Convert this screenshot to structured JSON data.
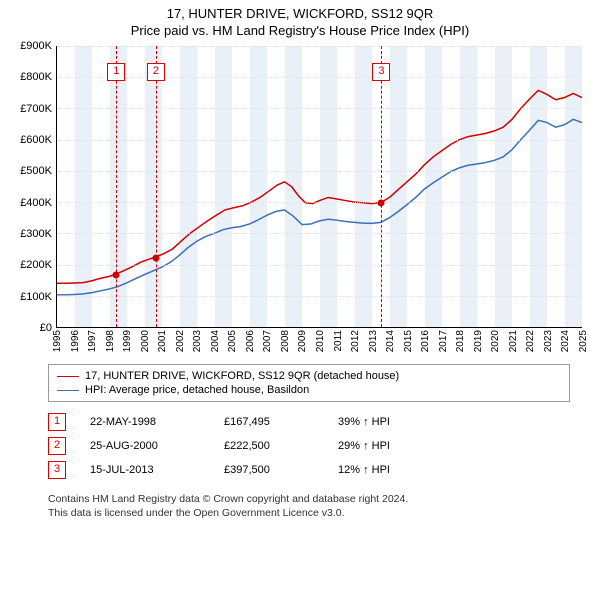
{
  "title": {
    "line1": "17, HUNTER DRIVE, WICKFORD, SS12 9QR",
    "line2": "Price paid vs. HM Land Registry's House Price Index (HPI)"
  },
  "chart": {
    "type": "line",
    "x_start_year": 1995,
    "x_end_year": 2025,
    "y_min": 0,
    "y_max": 900000,
    "y_tick_step": 100000,
    "y_tick_labels": [
      "£0",
      "£100K",
      "£200K",
      "£300K",
      "£400K",
      "£500K",
      "£600K",
      "£700K",
      "£800K",
      "£900K"
    ],
    "background_color": "#ffffff",
    "grid_color": "#e0e0e0",
    "band_color": "#eaf0f8",
    "axis_color": "#000000",
    "title_fontsize": 13,
    "axis_fontsize": 11,
    "series": [
      {
        "key": "price_paid",
        "label": "17, HUNTER DRIVE, WICKFORD, SS12 9QR (detached house)",
        "color": "#d10000",
        "line_width": 1.5,
        "points": [
          [
            1995.0,
            140000
          ],
          [
            1995.5,
            140000
          ],
          [
            1996.0,
            141000
          ],
          [
            1996.5,
            142000
          ],
          [
            1997.0,
            148000
          ],
          [
            1997.5,
            156000
          ],
          [
            1998.0,
            162000
          ],
          [
            1998.39,
            170000
          ],
          [
            1998.8,
            180000
          ],
          [
            1999.3,
            193000
          ],
          [
            1999.8,
            208000
          ],
          [
            2000.3,
            218000
          ],
          [
            2000.65,
            225000
          ],
          [
            2001.1,
            235000
          ],
          [
            2001.6,
            250000
          ],
          [
            2002.1,
            275000
          ],
          [
            2002.6,
            300000
          ],
          [
            2003.1,
            320000
          ],
          [
            2003.6,
            340000
          ],
          [
            2004.1,
            358000
          ],
          [
            2004.6,
            375000
          ],
          [
            2005.1,
            382000
          ],
          [
            2005.6,
            388000
          ],
          [
            2006.1,
            400000
          ],
          [
            2006.6,
            415000
          ],
          [
            2007.1,
            435000
          ],
          [
            2007.6,
            455000
          ],
          [
            2008.0,
            465000
          ],
          [
            2008.4,
            450000
          ],
          [
            2008.8,
            420000
          ],
          [
            2009.2,
            398000
          ],
          [
            2009.6,
            395000
          ],
          [
            2010.0,
            405000
          ],
          [
            2010.5,
            415000
          ],
          [
            2011.0,
            410000
          ],
          [
            2011.5,
            405000
          ],
          [
            2012.0,
            400000
          ],
          [
            2012.5,
            398000
          ],
          [
            2013.0,
            395000
          ],
          [
            2013.54,
            400000
          ],
          [
            2014.0,
            415000
          ],
          [
            2014.5,
            440000
          ],
          [
            2015.0,
            465000
          ],
          [
            2015.5,
            490000
          ],
          [
            2016.0,
            520000
          ],
          [
            2016.5,
            545000
          ],
          [
            2017.0,
            565000
          ],
          [
            2017.5,
            585000
          ],
          [
            2018.0,
            600000
          ],
          [
            2018.5,
            610000
          ],
          [
            2019.0,
            615000
          ],
          [
            2019.5,
            620000
          ],
          [
            2020.0,
            628000
          ],
          [
            2020.5,
            640000
          ],
          [
            2021.0,
            665000
          ],
          [
            2021.5,
            700000
          ],
          [
            2022.0,
            730000
          ],
          [
            2022.5,
            758000
          ],
          [
            2023.0,
            745000
          ],
          [
            2023.5,
            728000
          ],
          [
            2024.0,
            735000
          ],
          [
            2024.5,
            748000
          ],
          [
            2025.0,
            735000
          ]
        ]
      },
      {
        "key": "hpi",
        "label": "HPI: Average price, detached house, Basildon",
        "color": "#3b6fb6",
        "line_width": 1.5,
        "points": [
          [
            1995.0,
            103000
          ],
          [
            1995.5,
            103000
          ],
          [
            1996.0,
            104000
          ],
          [
            1996.5,
            106000
          ],
          [
            1997.0,
            110000
          ],
          [
            1997.5,
            116000
          ],
          [
            1998.0,
            122000
          ],
          [
            1998.5,
            130000
          ],
          [
            1999.0,
            142000
          ],
          [
            1999.5,
            155000
          ],
          [
            2000.0,
            168000
          ],
          [
            2000.5,
            180000
          ],
          [
            2001.0,
            192000
          ],
          [
            2001.5,
            208000
          ],
          [
            2002.0,
            230000
          ],
          [
            2002.5,
            255000
          ],
          [
            2003.0,
            275000
          ],
          [
            2003.5,
            290000
          ],
          [
            2004.0,
            300000
          ],
          [
            2004.5,
            312000
          ],
          [
            2005.0,
            318000
          ],
          [
            2005.5,
            322000
          ],
          [
            2006.0,
            330000
          ],
          [
            2006.5,
            343000
          ],
          [
            2007.0,
            358000
          ],
          [
            2007.5,
            370000
          ],
          [
            2008.0,
            375000
          ],
          [
            2008.5,
            355000
          ],
          [
            2009.0,
            328000
          ],
          [
            2009.5,
            330000
          ],
          [
            2010.0,
            340000
          ],
          [
            2010.5,
            345000
          ],
          [
            2011.0,
            342000
          ],
          [
            2011.5,
            338000
          ],
          [
            2012.0,
            335000
          ],
          [
            2012.5,
            333000
          ],
          [
            2013.0,
            332000
          ],
          [
            2013.5,
            335000
          ],
          [
            2014.0,
            350000
          ],
          [
            2014.5,
            370000
          ],
          [
            2015.0,
            392000
          ],
          [
            2015.5,
            415000
          ],
          [
            2016.0,
            442000
          ],
          [
            2016.5,
            462000
          ],
          [
            2017.0,
            480000
          ],
          [
            2017.5,
            498000
          ],
          [
            2018.0,
            510000
          ],
          [
            2018.5,
            518000
          ],
          [
            2019.0,
            522000
          ],
          [
            2019.5,
            527000
          ],
          [
            2020.0,
            534000
          ],
          [
            2020.5,
            545000
          ],
          [
            2021.0,
            568000
          ],
          [
            2021.5,
            600000
          ],
          [
            2022.0,
            630000
          ],
          [
            2022.5,
            662000
          ],
          [
            2023.0,
            655000
          ],
          [
            2023.5,
            640000
          ],
          [
            2024.0,
            648000
          ],
          [
            2024.5,
            665000
          ],
          [
            2025.0,
            655000
          ]
        ]
      }
    ],
    "sale_markers": [
      {
        "n": "1",
        "year": 1998.39,
        "value": 167495
      },
      {
        "n": "2",
        "year": 2000.65,
        "value": 222500
      },
      {
        "n": "3",
        "year": 2013.54,
        "value": 397500
      }
    ],
    "marker_color": "#d10000",
    "marker_box_top_pct": 6
  },
  "legend": {
    "border_color": "#999999"
  },
  "sales": [
    {
      "n": "1",
      "date": "22-MAY-1998",
      "price": "£167,495",
      "rel": "39% ↑ HPI"
    },
    {
      "n": "2",
      "date": "25-AUG-2000",
      "price": "£222,500",
      "rel": "29% ↑ HPI"
    },
    {
      "n": "3",
      "date": "15-JUL-2013",
      "price": "£397,500",
      "rel": "12% ↑ HPI"
    }
  ],
  "footnote": {
    "line1": "Contains HM Land Registry data © Crown copyright and database right 2024.",
    "line2": "This data is licensed under the Open Government Licence v3.0."
  }
}
